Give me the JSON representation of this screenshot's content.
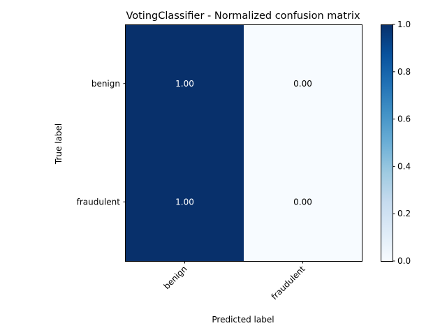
{
  "chart_data": {
    "type": "heatmap",
    "title": "VotingClassifier - Normalized confusion matrix",
    "xlabel": "Predicted label",
    "ylabel": "True label",
    "x_categories": [
      "benign",
      "fraudulent"
    ],
    "y_categories": [
      "benign",
      "fraudulent"
    ],
    "values": [
      [
        1.0,
        0.0
      ],
      [
        1.0,
        0.0
      ]
    ],
    "cell_labels": [
      [
        "1.00",
        "0.00"
      ],
      [
        "1.00",
        "0.00"
      ]
    ],
    "colorscale": "Blues",
    "color_low": "#f7fbff",
    "color_high": "#08306b",
    "colorbar": {
      "range": [
        0.0,
        1.0
      ],
      "ticks": [
        0.0,
        0.2,
        0.4,
        0.6,
        0.8,
        1.0
      ],
      "tick_labels": [
        "0.0",
        "0.2",
        "0.4",
        "0.6",
        "0.8",
        "1.0"
      ]
    },
    "grid": false
  }
}
